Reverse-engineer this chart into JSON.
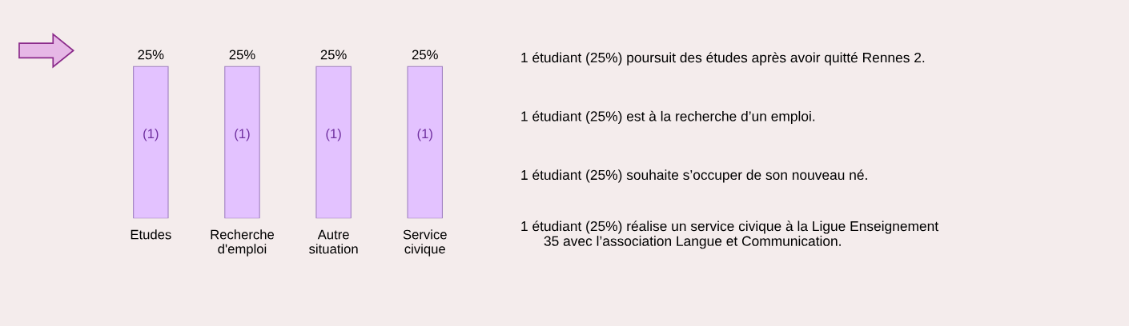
{
  "chart_data": {
    "type": "bar",
    "categories": [
      "Etudes",
      "Recherche\nd'emploi",
      "Autre\nsituation",
      "Service\ncivique"
    ],
    "values": [
      25,
      25,
      25,
      25
    ],
    "value_labels": [
      "25%",
      "25%",
      "25%",
      "25%"
    ],
    "color": "#e3c2ff",
    "grid": false,
    "legend": false,
    "annotations": [
      "(1)",
      "(1)",
      "(1)",
      "(1)",
      "1 étudiant (25%) poursuit des études après avoir quitté Rennes 2.",
      "1 étudiant (25%) est à la recherche d’un emploi.",
      "1 étudiant (25%) souhaite s’occuper de son nouveau né.",
      "1 étudiant (25%) réalise un service civique à la Ligue Enseignement\n      35 avec l’association Langue et Communication."
    ]
  }
}
